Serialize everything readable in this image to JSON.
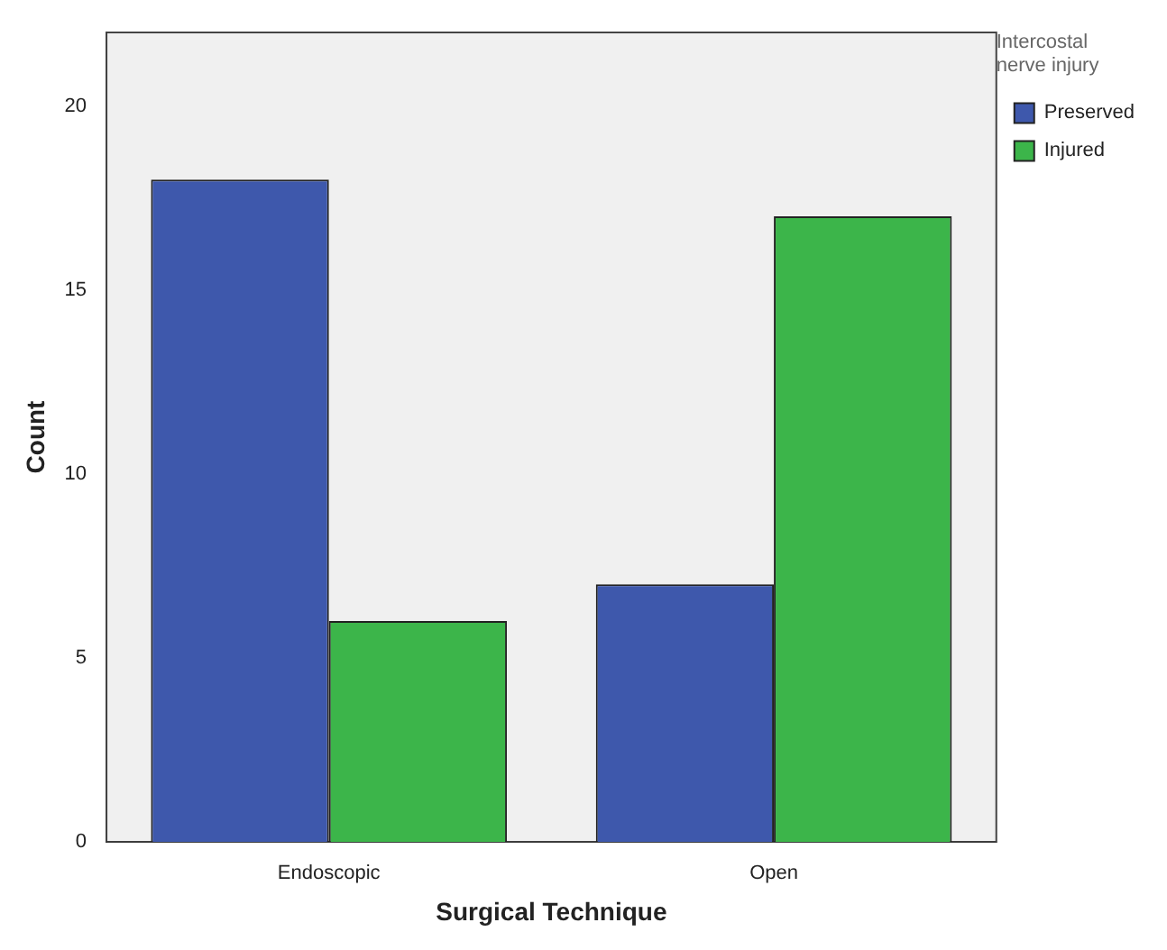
{
  "chart_data": {
    "type": "bar",
    "xlabel": "Surgical Technique",
    "ylabel": "Count",
    "legend_title": "Intercostal nerve injury",
    "categories": [
      "Endoscopic",
      "Open"
    ],
    "series": [
      {
        "name": "Preserved",
        "color": "#3e58ac",
        "values": [
          18,
          7
        ]
      },
      {
        "name": "Injured",
        "color": "#3cb54a",
        "values": [
          6,
          17
        ]
      }
    ],
    "ylim": [
      0,
      22
    ],
    "yticks": [
      0,
      5,
      10,
      15,
      20
    ],
    "grid": false,
    "legend": "top right"
  }
}
